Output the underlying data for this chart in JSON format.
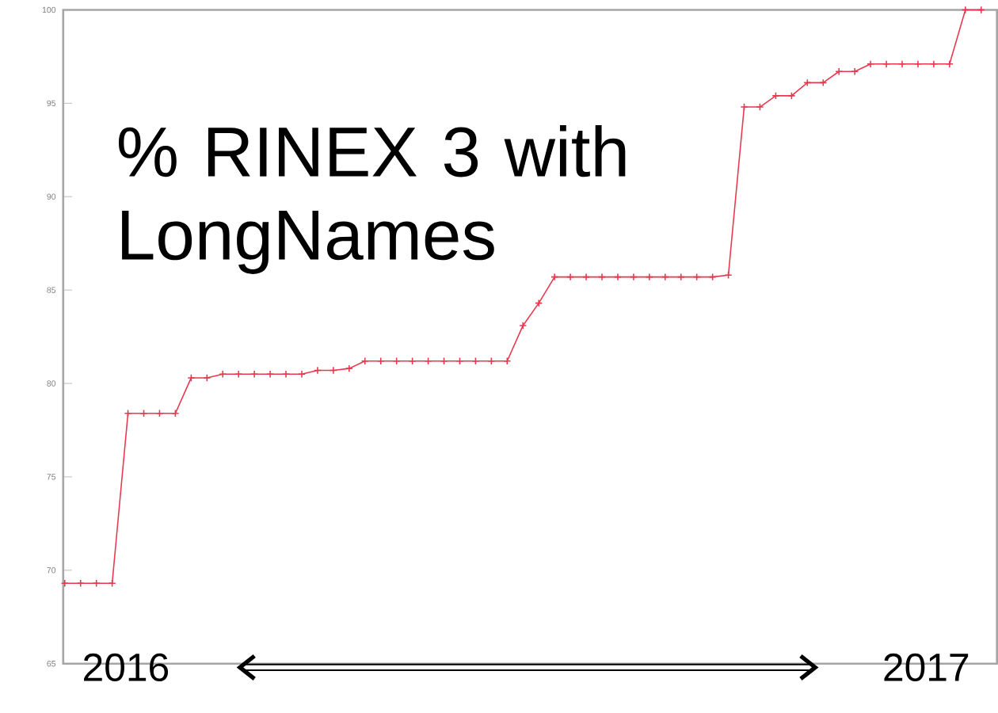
{
  "chart_data": {
    "type": "line",
    "title": "% RINEX 3 with LongNames",
    "categories": [
      null,
      null,
      null,
      null,
      null,
      null,
      null,
      null,
      null,
      null,
      null,
      null,
      null,
      null,
      null,
      null,
      null,
      null,
      null,
      null,
      null,
      null,
      null,
      null,
      null,
      null,
      null,
      null,
      null,
      null,
      null,
      null,
      null,
      null,
      null,
      null,
      null,
      null,
      null,
      null,
      null,
      null,
      null,
      null,
      null,
      null,
      null,
      null,
      null,
      null,
      null,
      null,
      null,
      null,
      null,
      null,
      null,
      null,
      null
    ],
    "series": [
      {
        "color": "#e8384f",
        "values": [
          69.3,
          69.3,
          69.3,
          69.3,
          78.4,
          78.4,
          78.4,
          78.4,
          80.3,
          80.3,
          80.5,
          80.5,
          80.5,
          80.5,
          80.5,
          80.5,
          80.7,
          80.7,
          80.8,
          81.2,
          81.2,
          81.2,
          81.2,
          81.2,
          81.2,
          81.2,
          81.2,
          81.2,
          81.2,
          83.1,
          84.3,
          85.7,
          85.7,
          85.7,
          85.7,
          85.7,
          85.7,
          85.7,
          85.7,
          85.7,
          85.7,
          85.7,
          85.8,
          94.8,
          94.8,
          95.4,
          95.4,
          96.1,
          96.1,
          96.7,
          96.7,
          97.1,
          97.1,
          97.1,
          97.1,
          97.1,
          97.1,
          100,
          100
        ]
      }
    ],
    "ylim": [
      65,
      100
    ],
    "yticks": [
      65,
      70,
      75,
      80,
      85,
      90,
      95,
      100
    ],
    "marker": "cross",
    "line_style": "solid",
    "annotations": [
      "2016",
      "2017"
    ]
  }
}
